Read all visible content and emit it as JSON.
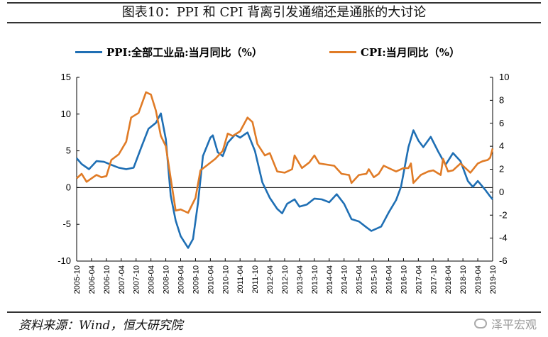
{
  "title": "图表10：PPI 和 CPI 背离引发通缩还是通胀的大讨论",
  "source": "资料来源：Wind，恒大研究院",
  "watermark": "泽平宏观",
  "colors": {
    "ppi": "#1f6fb4",
    "cpi": "#e07b26",
    "axis": "#000000"
  },
  "chart_data": {
    "type": "line",
    "title": "图表10：PPI 和 CPI 背离引发通缩还是通胀的大讨论",
    "x_tick_labels": [
      "2005-10",
      "2006-04",
      "2006-10",
      "2007-04",
      "2007-10",
      "2008-04",
      "2008-10",
      "2009-04",
      "2009-10",
      "2010-04",
      "2010-10",
      "2011-04",
      "2011-10",
      "2012-04",
      "2012-10",
      "2013-04",
      "2013-10",
      "2014-04",
      "2014-10",
      "2015-04",
      "2015-10",
      "2016-04",
      "2016-10",
      "2017-04",
      "2017-10",
      "2018-04",
      "2018-10",
      "2019-04",
      "2019-10"
    ],
    "x_range": [
      "2005-10",
      "2019-10"
    ],
    "y_left": {
      "min": -10,
      "max": 15,
      "ticks": [
        15,
        10,
        5,
        0,
        -5,
        -10
      ]
    },
    "y_right": {
      "min": -6,
      "max": 10,
      "ticks": [
        10,
        8,
        6,
        4,
        2,
        0,
        -2,
        -4,
        -6
      ]
    },
    "series": [
      {
        "name": "PPI:全部工业品:当月同比（%）",
        "axis": "left",
        "color": "#1f6fb4",
        "points": [
          [
            "2005-10",
            4.0
          ],
          [
            "2005-12",
            3.2
          ],
          [
            "2006-03",
            2.5
          ],
          [
            "2006-06",
            3.6
          ],
          [
            "2006-09",
            3.5
          ],
          [
            "2006-12",
            3.1
          ],
          [
            "2007-03",
            2.7
          ],
          [
            "2007-06",
            2.5
          ],
          [
            "2007-09",
            2.7
          ],
          [
            "2007-12",
            5.4
          ],
          [
            "2008-03",
            8.0
          ],
          [
            "2008-06",
            8.8
          ],
          [
            "2008-08",
            10.1
          ],
          [
            "2008-10",
            6.6
          ],
          [
            "2008-12",
            -1.1
          ],
          [
            "2009-02",
            -4.5
          ],
          [
            "2009-04",
            -6.6
          ],
          [
            "2009-07",
            -8.2
          ],
          [
            "2009-09",
            -7.0
          ],
          [
            "2009-11",
            -2.1
          ],
          [
            "2010-01",
            4.3
          ],
          [
            "2010-04",
            6.8
          ],
          [
            "2010-05",
            7.1
          ],
          [
            "2010-07",
            4.8
          ],
          [
            "2010-09",
            4.3
          ],
          [
            "2010-11",
            6.1
          ],
          [
            "2011-02",
            7.2
          ],
          [
            "2011-04",
            6.8
          ],
          [
            "2011-07",
            7.5
          ],
          [
            "2011-10",
            5.0
          ],
          [
            "2012-01",
            0.7
          ],
          [
            "2012-04",
            -1.4
          ],
          [
            "2012-07",
            -2.9
          ],
          [
            "2012-09",
            -3.5
          ],
          [
            "2012-11",
            -2.2
          ],
          [
            "2013-02",
            -1.6
          ],
          [
            "2013-04",
            -2.6
          ],
          [
            "2013-07",
            -2.3
          ],
          [
            "2013-10",
            -1.5
          ],
          [
            "2014-01",
            -1.6
          ],
          [
            "2014-04",
            -2.0
          ],
          [
            "2014-07",
            -0.9
          ],
          [
            "2014-10",
            -2.2
          ],
          [
            "2015-01",
            -4.3
          ],
          [
            "2015-04",
            -4.6
          ],
          [
            "2015-07",
            -5.4
          ],
          [
            "2015-09",
            -5.9
          ],
          [
            "2016-01",
            -5.3
          ],
          [
            "2016-04",
            -3.4
          ],
          [
            "2016-07",
            -1.7
          ],
          [
            "2016-09",
            0.1
          ],
          [
            "2016-12",
            5.5
          ],
          [
            "2017-02",
            7.8
          ],
          [
            "2017-04",
            6.4
          ],
          [
            "2017-06",
            5.5
          ],
          [
            "2017-09",
            6.9
          ],
          [
            "2017-12",
            4.9
          ],
          [
            "2018-03",
            3.1
          ],
          [
            "2018-06",
            4.7
          ],
          [
            "2018-09",
            3.6
          ],
          [
            "2018-12",
            0.9
          ],
          [
            "2019-02",
            0.1
          ],
          [
            "2019-04",
            0.9
          ],
          [
            "2019-07",
            -0.3
          ],
          [
            "2019-09",
            -1.2
          ],
          [
            "2019-10",
            -1.6
          ]
        ]
      },
      {
        "name": "CPI:当月同比（%）",
        "axis": "right",
        "color": "#e07b26",
        "points": [
          [
            "2005-10",
            1.2
          ],
          [
            "2005-12",
            1.6
          ],
          [
            "2006-02",
            0.9
          ],
          [
            "2006-04",
            1.2
          ],
          [
            "2006-06",
            1.5
          ],
          [
            "2006-08",
            1.3
          ],
          [
            "2006-10",
            1.4
          ],
          [
            "2006-12",
            2.8
          ],
          [
            "2007-03",
            3.3
          ],
          [
            "2007-06",
            4.4
          ],
          [
            "2007-08",
            6.5
          ],
          [
            "2007-11",
            6.9
          ],
          [
            "2008-02",
            8.7
          ],
          [
            "2008-04",
            8.5
          ],
          [
            "2008-06",
            7.1
          ],
          [
            "2008-08",
            4.9
          ],
          [
            "2008-10",
            4.0
          ],
          [
            "2008-12",
            1.2
          ],
          [
            "2009-02",
            -1.6
          ],
          [
            "2009-04",
            -1.5
          ],
          [
            "2009-07",
            -1.8
          ],
          [
            "2009-10",
            -0.5
          ],
          [
            "2009-12",
            1.9
          ],
          [
            "2010-03",
            2.4
          ],
          [
            "2010-06",
            2.9
          ],
          [
            "2010-09",
            3.6
          ],
          [
            "2010-11",
            5.1
          ],
          [
            "2011-01",
            4.9
          ],
          [
            "2011-04",
            5.3
          ],
          [
            "2011-07",
            6.5
          ],
          [
            "2011-09",
            6.1
          ],
          [
            "2011-11",
            4.2
          ],
          [
            "2012-02",
            3.2
          ],
          [
            "2012-04",
            3.4
          ],
          [
            "2012-07",
            1.8
          ],
          [
            "2012-10",
            1.7
          ],
          [
            "2013-01",
            2.0
          ],
          [
            "2013-02",
            3.2
          ],
          [
            "2013-05",
            2.1
          ],
          [
            "2013-08",
            2.6
          ],
          [
            "2013-10",
            3.2
          ],
          [
            "2013-12",
            2.5
          ],
          [
            "2014-03",
            2.4
          ],
          [
            "2014-06",
            2.3
          ],
          [
            "2014-09",
            1.6
          ],
          [
            "2014-12",
            1.5
          ],
          [
            "2015-01",
            0.8
          ],
          [
            "2015-04",
            1.5
          ],
          [
            "2015-07",
            1.6
          ],
          [
            "2015-08",
            2.0
          ],
          [
            "2015-10",
            1.3
          ],
          [
            "2015-12",
            1.6
          ],
          [
            "2016-02",
            2.3
          ],
          [
            "2016-05",
            2.0
          ],
          [
            "2016-07",
            1.8
          ],
          [
            "2016-10",
            2.1
          ],
          [
            "2016-12",
            2.1
          ],
          [
            "2017-01",
            2.5
          ],
          [
            "2017-02",
            0.8
          ],
          [
            "2017-05",
            1.5
          ],
          [
            "2017-08",
            1.8
          ],
          [
            "2017-10",
            1.9
          ],
          [
            "2018-01",
            1.5
          ],
          [
            "2018-02",
            2.9
          ],
          [
            "2018-04",
            1.8
          ],
          [
            "2018-06",
            1.9
          ],
          [
            "2018-09",
            2.5
          ],
          [
            "2018-12",
            1.9
          ],
          [
            "2019-01",
            1.7
          ],
          [
            "2019-04",
            2.5
          ],
          [
            "2019-06",
            2.7
          ],
          [
            "2019-08",
            2.8
          ],
          [
            "2019-09",
            3.0
          ],
          [
            "2019-10",
            3.8
          ]
        ]
      }
    ]
  }
}
